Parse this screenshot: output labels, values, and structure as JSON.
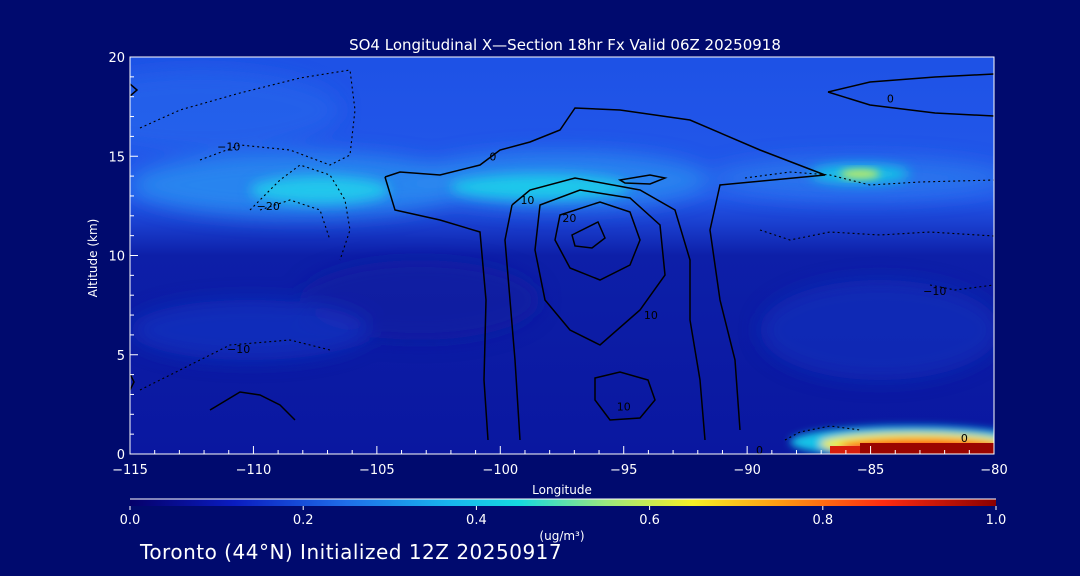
{
  "chart_data": {
    "type": "heatmap",
    "title": "SO4 Longitudinal X—Section 18hr  Fx Valid 06Z 20250918",
    "xlabel": "Longitude",
    "ylabel": "Altitude (km)",
    "xlim": [
      -115,
      -80
    ],
    "ylim": [
      0,
      20
    ],
    "x_ticks": [
      "−115",
      "−110",
      "−105",
      "−100",
      "−95",
      "−90",
      "−85",
      "−80"
    ],
    "x_tick_values": [
      -115,
      -110,
      -105,
      -100,
      -95,
      -90,
      -85,
      -80
    ],
    "y_ticks": [
      "0",
      "5",
      "10",
      "15",
      "20"
    ],
    "y_tick_values": [
      0,
      5,
      10,
      15,
      20
    ],
    "colorbar": {
      "label": "(ug/m³)",
      "min": 0.0,
      "max": 1.0,
      "tick_labels": [
        "0.0",
        "0.2",
        "0.4",
        "0.6",
        "0.8",
        "1.0"
      ],
      "tick_values": [
        0.0,
        0.2,
        0.4,
        0.6,
        0.8,
        1.0
      ]
    },
    "field_features": [
      {
        "name": "upper-tropospheric layer",
        "lon_range": [
          -115,
          -80
        ],
        "alt_km": [
          12,
          17
        ],
        "value": 0.2
      },
      {
        "name": "high plume west",
        "lon": -108,
        "alt_km": 13.5,
        "value": 0.4
      },
      {
        "name": "high plume central",
        "lon": -97,
        "alt_km": 13.5,
        "value": 0.4
      },
      {
        "name": "high plume east",
        "lon": -85,
        "alt_km": 14,
        "value": 0.62
      },
      {
        "name": "surface plume",
        "lon_range": [
          -90,
          -80
        ],
        "alt_km": [
          0,
          1.2
        ],
        "value": 1.0
      }
    ],
    "contour_labels": [
      {
        "text": "0",
        "lon": -100.3,
        "alt_km": 15
      },
      {
        "text": "0",
        "lon": -84.2,
        "alt_km": 17.9
      },
      {
        "text": "−10",
        "lon": -111,
        "alt_km": 15.5
      },
      {
        "text": "−20",
        "lon": -109.4,
        "alt_km": 12.5
      },
      {
        "text": "10",
        "lon": -98.9,
        "alt_km": 12.8
      },
      {
        "text": "20",
        "lon": -97.2,
        "alt_km": 11.9
      },
      {
        "text": "10",
        "lon": -93.9,
        "alt_km": 7.0
      },
      {
        "text": "10",
        "lon": -95,
        "alt_km": 2.4
      },
      {
        "text": "−10",
        "lon": -110.6,
        "alt_km": 5.3
      },
      {
        "text": "−10",
        "lon": -82.4,
        "alt_km": 8.2
      },
      {
        "text": "0",
        "lon": -89.5,
        "alt_km": 0.2
      },
      {
        "text": "0",
        "lon": -81.2,
        "alt_km": 0.8
      }
    ]
  },
  "footer": {
    "label": "Toronto (44°N) Initialized 12Z 20250917"
  },
  "colors": {
    "background": "#000a6e",
    "text": "#ffffff",
    "contour": "#000000"
  }
}
